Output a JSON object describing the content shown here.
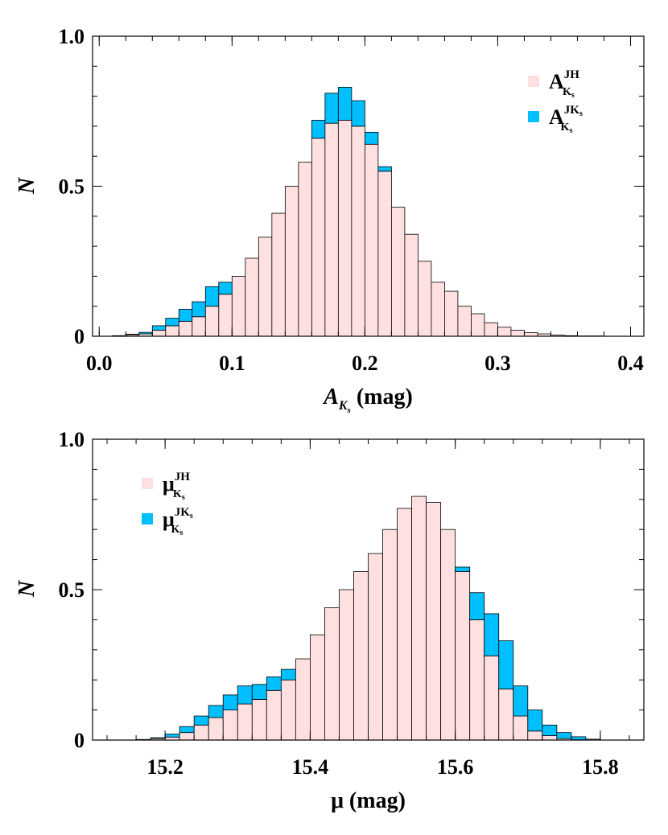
{
  "chart_data": [
    {
      "type": "bar",
      "stacked": true,
      "xlabel": "A",
      "xlabel_sub": "K",
      "xlabel_subsub": "s",
      "xlabel_unit": " (mag)",
      "ylabel": "N",
      "xlim": [
        -0.005,
        0.41
      ],
      "ylim": [
        0,
        1.0
      ],
      "xticks": [
        {
          "value": 0.0,
          "label": "0.0"
        },
        {
          "value": 0.1,
          "label": "0.1"
        },
        {
          "value": 0.2,
          "label": "0.2"
        },
        {
          "value": 0.3,
          "label": "0.3"
        },
        {
          "value": 0.4,
          "label": "0.4"
        }
      ],
      "yticks": [
        {
          "value": 0,
          "label": "0"
        },
        {
          "value": 0.5,
          "label": "0.5"
        },
        {
          "value": 1.0,
          "label": "1.0"
        }
      ],
      "legend_position": "top-right",
      "bin_width": 0.01,
      "x": [
        0.0,
        0.01,
        0.02,
        0.03,
        0.04,
        0.05,
        0.06,
        0.07,
        0.08,
        0.09,
        0.1,
        0.11,
        0.12,
        0.13,
        0.14,
        0.15,
        0.16,
        0.17,
        0.18,
        0.19,
        0.2,
        0.21,
        0.22,
        0.23,
        0.24,
        0.25,
        0.26,
        0.27,
        0.28,
        0.29,
        0.3,
        0.31,
        0.32,
        0.33,
        0.34,
        0.35,
        0.36,
        0.37,
        0.38,
        0.39,
        0.4
      ],
      "series": [
        {
          "name": "A",
          "name_sub": "K",
          "name_subsub": "s",
          "name_sup": "JH",
          "color": "#ffe0e0",
          "values": [
            0.0,
            0.002,
            0.005,
            0.008,
            0.02,
            0.035,
            0.05,
            0.065,
            0.1,
            0.14,
            0.2,
            0.26,
            0.33,
            0.41,
            0.5,
            0.58,
            0.66,
            0.71,
            0.72,
            0.7,
            0.64,
            0.55,
            0.43,
            0.34,
            0.25,
            0.18,
            0.15,
            0.1,
            0.075,
            0.045,
            0.03,
            0.02,
            0.012,
            0.008,
            0.004,
            0.002,
            0.001,
            0.001,
            0.0,
            0.0,
            0.0
          ]
        },
        {
          "name": "A",
          "name_sub": "K",
          "name_subsub": "s",
          "name_sup": "JK",
          "name_sup_sub": "s",
          "color": "#00bfff",
          "values": [
            0.0,
            0.0,
            0.002,
            0.005,
            0.015,
            0.025,
            0.04,
            0.05,
            0.065,
            0.04,
            0.0,
            0.0,
            0.0,
            0.0,
            0.0,
            0.0,
            0.06,
            0.1,
            0.11,
            0.085,
            0.04,
            0.015,
            0.0,
            0.0,
            0.0,
            0.0,
            0.0,
            0.0,
            0.0,
            0.0,
            0.0,
            0.0,
            0.0,
            0.0,
            0.0,
            0.0,
            0.0,
            0.0,
            0.0,
            0.0,
            0.0
          ]
        }
      ]
    },
    {
      "type": "bar",
      "stacked": true,
      "xlabel": "μ (mag)",
      "ylabel": "N",
      "xlim": [
        15.1,
        15.86
      ],
      "ylim": [
        0,
        1.0
      ],
      "xticks": [
        {
          "value": 15.2,
          "label": "15.2"
        },
        {
          "value": 15.4,
          "label": "15.4"
        },
        {
          "value": 15.6,
          "label": "15.6"
        },
        {
          "value": 15.8,
          "label": "15.8"
        }
      ],
      "yticks": [
        {
          "value": 0,
          "label": "0"
        },
        {
          "value": 0.5,
          "label": "0.5"
        },
        {
          "value": 1.0,
          "label": "1.0"
        }
      ],
      "legend_position": "top-left",
      "bin_width": 0.02,
      "x": [
        15.1,
        15.12,
        15.14,
        15.16,
        15.18,
        15.2,
        15.22,
        15.24,
        15.26,
        15.28,
        15.3,
        15.32,
        15.34,
        15.36,
        15.38,
        15.4,
        15.42,
        15.44,
        15.46,
        15.48,
        15.5,
        15.52,
        15.54,
        15.56,
        15.58,
        15.6,
        15.62,
        15.64,
        15.66,
        15.68,
        15.7,
        15.72,
        15.74,
        15.76,
        15.78,
        15.8,
        15.82,
        15.84
      ],
      "series": [
        {
          "name": "μ",
          "name_sub": "K",
          "name_subsub": "s",
          "name_sup": "JH",
          "color": "#ffe0e0",
          "values": [
            0.0,
            0.0,
            0.0,
            0.002,
            0.005,
            0.01,
            0.025,
            0.05,
            0.075,
            0.1,
            0.12,
            0.135,
            0.165,
            0.2,
            0.27,
            0.35,
            0.44,
            0.5,
            0.56,
            0.62,
            0.7,
            0.77,
            0.81,
            0.79,
            0.7,
            0.56,
            0.4,
            0.28,
            0.17,
            0.08,
            0.03,
            0.015,
            0.005,
            0.001,
            0.0,
            0.0,
            0.0,
            0.0
          ]
        },
        {
          "name": "μ",
          "name_sub": "K",
          "name_subsub": "s",
          "name_sup": "JK",
          "name_sup_sub": "s",
          "color": "#00bfff",
          "values": [
            0.0,
            0.0,
            0.0,
            0.0,
            0.003,
            0.01,
            0.02,
            0.03,
            0.04,
            0.05,
            0.06,
            0.05,
            0.045,
            0.035,
            0.0,
            0.0,
            0.0,
            0.0,
            0.0,
            0.0,
            0.0,
            0.0,
            0.0,
            0.0,
            0.0,
            0.015,
            0.09,
            0.14,
            0.16,
            0.1,
            0.07,
            0.035,
            0.02,
            0.01,
            0.003,
            0.0,
            0.0,
            0.0
          ]
        }
      ]
    }
  ]
}
